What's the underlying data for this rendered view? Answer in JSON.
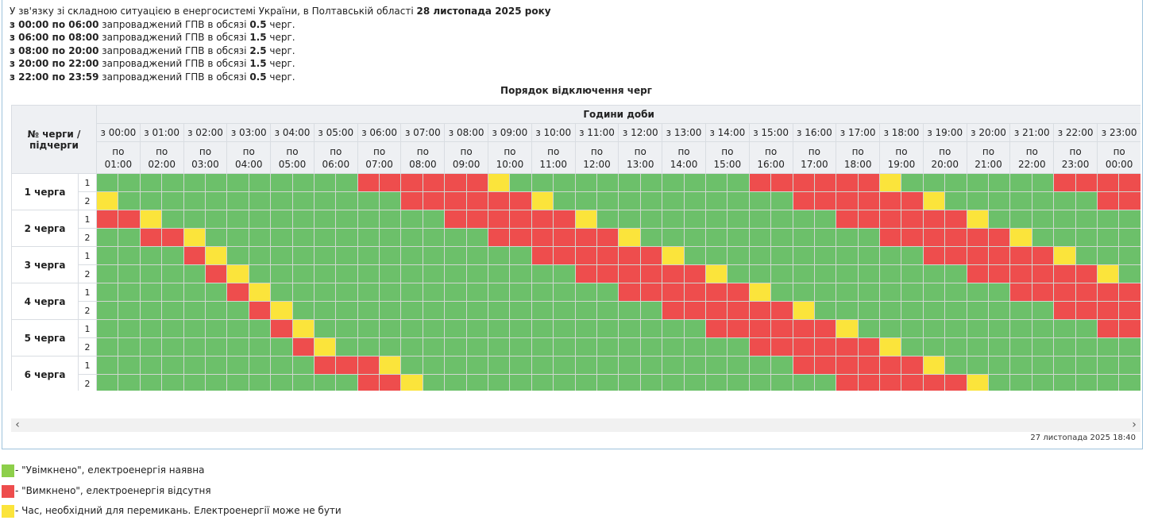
{
  "info": {
    "title_prefix": "У зв'язку зі складною ситуацією в енергосистемі України, в Полтавській області ",
    "title_date": "28 листопада 2025 року",
    "lines": [
      {
        "time": "з 00:00 по 06:00",
        "mid": " запроваджений ГПВ в обсязі ",
        "amount": "0.5",
        "tail": " черг."
      },
      {
        "time": "з 06:00 по 08:00",
        "mid": " запроваджений ГПВ в обсязі ",
        "amount": "1.5",
        "tail": " черг."
      },
      {
        "time": "з 08:00 по 20:00",
        "mid": " запроваджений ГПВ в обсязі ",
        "amount": "2.5",
        "tail": " черг."
      },
      {
        "time": "з 20:00 по 22:00",
        "mid": " запроваджений ГПВ в обсязі ",
        "amount": "1.5",
        "tail": " черг."
      },
      {
        "time": "з 22:00 по 23:59",
        "mid": " запроваджений ГПВ в обсязі ",
        "amount": "0.5",
        "tail": " черг."
      }
    ]
  },
  "table": {
    "caption": "Порядок відключення черг",
    "corner_label": "№ черги / підчерги",
    "hours_title": "Години доби",
    "hours_from": [
      "з 00:00",
      "з 01:00",
      "з 02:00",
      "з 03:00",
      "з 04:00",
      "з 05:00",
      "з 06:00",
      "з 07:00",
      "з 08:00",
      "з 09:00",
      "з 10:00",
      "з 11:00",
      "з 12:00",
      "з 13:00",
      "з 14:00",
      "з 15:00",
      "з 16:00",
      "з 17:00",
      "з 18:00",
      "з 19:00",
      "з 20:00",
      "з 21:00",
      "з 22:00",
      "з 23:00"
    ],
    "hours_to_prefix": "по",
    "hours_to": [
      "01:00",
      "02:00",
      "03:00",
      "04:00",
      "05:00",
      "06:00",
      "07:00",
      "08:00",
      "09:00",
      "10:00",
      "11:00",
      "12:00",
      "13:00",
      "14:00",
      "15:00",
      "16:00",
      "17:00",
      "18:00",
      "19:00",
      "20:00",
      "21:00",
      "22:00",
      "23:00",
      "00:00"
    ],
    "cell_codes": {
      "G": "on",
      "R": "off",
      "Y": "maybe"
    },
    "queues": [
      {
        "name": "1 черга",
        "subs": [
          {
            "label": "1",
            "states": "GGGGGGGGGGGGRRRRRRYGGGGGGGGGGGRRRRRRYGGGGGGGRRRRRRYGGGGGGGGGGGGG"
          },
          {
            "label": "2",
            "states": "YGGGGGGGGGGGGGRRRRRRYGGGGGGGGGGGRRRRRRYGGGGGGGRRRRRRYGGGGGGGGGGG"
          }
        ]
      },
      {
        "name": "2 черга",
        "subs": [
          {
            "label": "1",
            "states": "RRYGGGGGGGGGGGGGRRRRRRYGGGGGGGGGGGRRRRRRYGGGGGGGRRRRRRYGGGGGGGGG"
          },
          {
            "label": "2",
            "states": "GGRRYGGGGGGGGGGGGGRRRRRRYGGGGGGGGGGGRRRRRRYGGGGGGGRRRRRRYGGGGGGG"
          }
        ]
      },
      {
        "name": "3 черга",
        "subs": [
          {
            "label": "1",
            "states": "GGGGRYGGGGGGGGGGGGGGRRRRRRYGGGGGGGGGGGRRRRRRYGGGGGGGRRRRRRYGGGGG"
          },
          {
            "label": "2",
            "states": "GGGGGRYGGGGGGGGGGGGGGGRRRRRRYGGGGGGGGGGGRRRRRRYGGGGGGGRRRRRYGGGG"
          }
        ]
      },
      {
        "name": "4 черга",
        "subs": [
          {
            "label": "1",
            "states": "GGGGGGRYGGGGGGGGGGGGGGGGRRRRRRYGGGGGGGGGGGRRRRRRYGGGGGGGRRRYGGGG"
          },
          {
            "label": "2",
            "states": "GGGGGGGRYGGGGGGGGGGGGGGGGGRRRRRRYGGGGGGGGGGGRRRRRRYGGGGGGGRRYGGG"
          }
        ]
      },
      {
        "name": "5 черга",
        "subs": [
          {
            "label": "1",
            "states": "GGGGGGGGRYGGGGGGGGGGGGGGGGGGRRRRRRYGGGGGGGGGGGRRRRRRYGGGGGGGRYGG"
          },
          {
            "label": "2",
            "states": "GGGGGGGGGRYGGGGGGGGGGGGGGGGGGGRRRRRRYGGGGGGGGGGGRRRRRRYGGGGGGGRY"
          }
        ]
      },
      {
        "name": "6 черга",
        "subs": [
          {
            "label": "1",
            "states": "GGGGGGGGGGRRRYGGGGGGGGGGGGGGGGGGRRRRRRYGGGGGGGGGGGRRRRRRYGGGGGGY"
          },
          {
            "label": "2",
            "states": "GGGGGGGGGGGGRRYGGGGGGGGGGGGGGGGGGGRRRRRRYGGGGGGGGGGGRRRRRRYGGGGR"
          }
        ]
      }
    ]
  },
  "timestamp": "27 листопада 2025 18:40",
  "legend": [
    {
      "color": "#8dcf4a",
      "text": " - \"Увімкнено\", електроенергія наявна"
    },
    {
      "color": "#ee4d4d",
      "text": " - \"Вимкнено\", електроенергія відсутня"
    },
    {
      "color": "#fbe43b",
      "text": " - Час, необхідний для перемикань. Електроенергії може не бути"
    }
  ],
  "colors": {
    "on": "#6cc06a",
    "off": "#ee4d4d",
    "maybe": "#fbe43b"
  }
}
